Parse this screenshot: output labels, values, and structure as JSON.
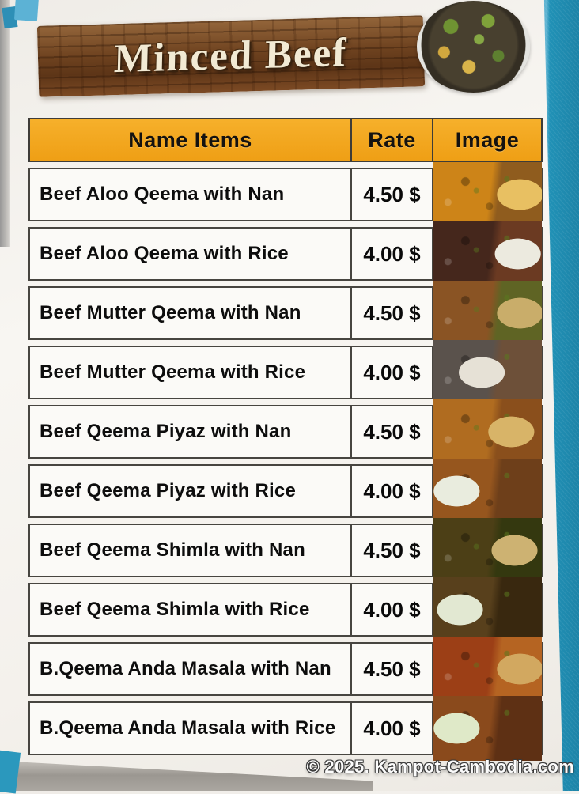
{
  "header": {
    "title": "Minced Beef"
  },
  "table": {
    "columns": {
      "name": "Name Items",
      "rate": "Rate",
      "image": "Image"
    },
    "items": [
      {
        "name": "Beef Aloo Qeema with Nan",
        "rate": "4.50 $",
        "photo": [
          "#e8c062",
          "#cd8418",
          "#8f5c1e",
          "80"
        ]
      },
      {
        "name": "Beef Aloo Qeema with Rice",
        "rate": "4.00 $",
        "photo": [
          "#eceadf",
          "#45271c",
          "#6b3a22",
          "78"
        ]
      },
      {
        "name": "Beef Mutter Qeema with Nan",
        "rate": "4.50 $",
        "photo": [
          "#c9ad6a",
          "#8a5424",
          "#5f6424",
          "80"
        ]
      },
      {
        "name": "Beef Mutter Qeema with Rice",
        "rate": "4.00 $",
        "photo": [
          "#e6e1d6",
          "#5a524c",
          "#6d5039",
          "45"
        ]
      },
      {
        "name": "Beef Qeema Piyaz with Nan",
        "rate": "4.50 $",
        "photo": [
          "#d8b468",
          "#b06c20",
          "#8a4f1c",
          "72"
        ]
      },
      {
        "name": "Beef Qeema Piyaz with Rice",
        "rate": "4.00 $",
        "photo": [
          "#e9ecde",
          "#96561e",
          "#6e3f1a",
          "22"
        ]
      },
      {
        "name": "Beef Qeema Shimla with Nan",
        "rate": "4.50 $",
        "photo": [
          "#cdb272",
          "#4c3f16",
          "#34380f",
          "75"
        ]
      },
      {
        "name": "Beef Qeema Shimla with Rice",
        "rate": "4.00 $",
        "photo": [
          "#e2e8d2",
          "#58401c",
          "#39280f",
          "25"
        ]
      },
      {
        "name": "B.Qeema Anda Masala with Nan",
        "rate": "4.50 $",
        "photo": [
          "#d2a860",
          "#9c3f16",
          "#b56422",
          "80"
        ]
      },
      {
        "name": "B.Qeema Anda Masala with Rice",
        "rate": "4.00 $",
        "photo": [
          "#dfe9c8",
          "#8a4a1c",
          "#5e3014",
          "22"
        ]
      }
    ]
  },
  "footer": {
    "watermark": "© 2025. Kampot-Cambodia.com"
  },
  "colors": {
    "header_yellow": "#F2A71E",
    "edge_teal": "#2191B6",
    "wood_brown": "#6E421F",
    "banner_text": "#F2EAD4"
  }
}
